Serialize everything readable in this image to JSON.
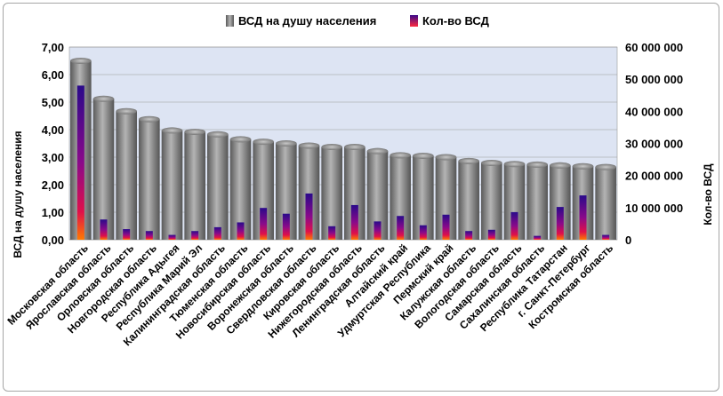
{
  "chart_data": {
    "type": "bar",
    "categories": [
      "Московская область",
      "Ярославская область",
      "Орловская область",
      "Новгородская область",
      "Республика Адыгея",
      "Республика Марий Эл",
      "Калининградская область",
      "Тюменская область",
      "Новосибирская область",
      "Воронежская область",
      "Свердловская область",
      "Кировская область",
      "Нижегородская область",
      "Ленинградская область",
      "Алтайский край",
      "Удмуртская Республика",
      "Пермский край",
      "Калужская область",
      "Вологодская область",
      "Самарская область",
      "Сахалинская область",
      "Республика Татарстан",
      "г. Санкт-Петербург",
      "Костромская область"
    ],
    "series": [
      {
        "name": "ВСД на душу населения",
        "axis": "left",
        "color": "#7f7f7f",
        "values": [
          6.5,
          5.12,
          4.67,
          4.38,
          3.97,
          3.92,
          3.83,
          3.65,
          3.56,
          3.5,
          3.42,
          3.37,
          3.37,
          3.22,
          3.07,
          3.05,
          3.0,
          2.86,
          2.79,
          2.75,
          2.73,
          2.7,
          2.67,
          2.64
        ]
      },
      {
        "name": "Кол-во ВСД",
        "axis": "right",
        "color": "#2a0a7a",
        "values": [
          48000000,
          6300000,
          3300000,
          2700000,
          1500000,
          2700000,
          3900000,
          5400000,
          9900000,
          8100000,
          14400000,
          4200000,
          10800000,
          5700000,
          7400000,
          4500000,
          7800000,
          2700000,
          3100000,
          8600000,
          1200000,
          10200000,
          13800000,
          1500000
        ]
      }
    ],
    "y_left": {
      "label": "ВСД на душу населения",
      "ylim": [
        0,
        7
      ],
      "ticks": [
        "0,00",
        "1,00",
        "2,00",
        "3,00",
        "4,00",
        "5,00",
        "6,00",
        "7,00"
      ]
    },
    "y_right": {
      "label": "Кол-во ВСД",
      "ylim": [
        0,
        60000000
      ],
      "ticks": [
        "0",
        "10 000 000",
        "20 000 000",
        "30 000 000",
        "40 000 000",
        "50 000 000",
        "60 000 000"
      ]
    },
    "legend_position": "top",
    "grid": true,
    "plot_background": "#dde4f3"
  }
}
